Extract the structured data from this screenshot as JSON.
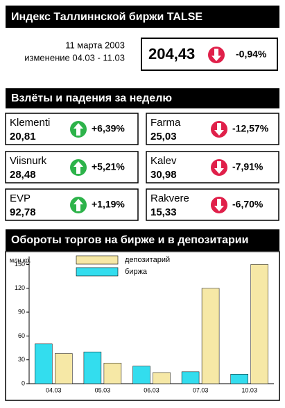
{
  "header": {
    "title": "Индекс Таллиннской биржи TALSE"
  },
  "index": {
    "date": "11 марта 2003",
    "period": "изменение 04.03 - 11.03",
    "value": "204,43",
    "change": "-0,94%"
  },
  "movers": {
    "title": "Взлёты и падения за неделю",
    "gainers": [
      {
        "name": "Klementi",
        "value": "20,81",
        "change": "+6,39%"
      },
      {
        "name": "Viisnurk",
        "value": "28,48",
        "change": "+5,21%"
      },
      {
        "name": "EVP",
        "value": "92,78",
        "change": "+1,19%"
      }
    ],
    "losers": [
      {
        "name": "Farma",
        "value": "25,03",
        "change": "-12,57%"
      },
      {
        "name": "Kalev",
        "value": "30,98",
        "change": "-7,91%"
      },
      {
        "name": "Rakvere",
        "value": "15,33",
        "change": "-6,70%"
      }
    ]
  },
  "chart_data": {
    "type": "bar",
    "title": "Обороты торгов на бирже и в депозитарии",
    "y_label": "млн.кр.",
    "categories": [
      "04.03",
      "05.03",
      "06.03",
      "07.03",
      "10.03"
    ],
    "series": [
      {
        "name": "биржа",
        "color": "#33ddee",
        "values": [
          50,
          40,
          22,
          15,
          12
        ]
      },
      {
        "name": "депозитарий",
        "color": "#f6e8a6",
        "values": [
          38,
          26,
          14,
          120,
          150
        ]
      }
    ],
    "ylim": [
      0,
      160
    ],
    "yticks": [
      0,
      30,
      60,
      90,
      120,
      150
    ]
  }
}
